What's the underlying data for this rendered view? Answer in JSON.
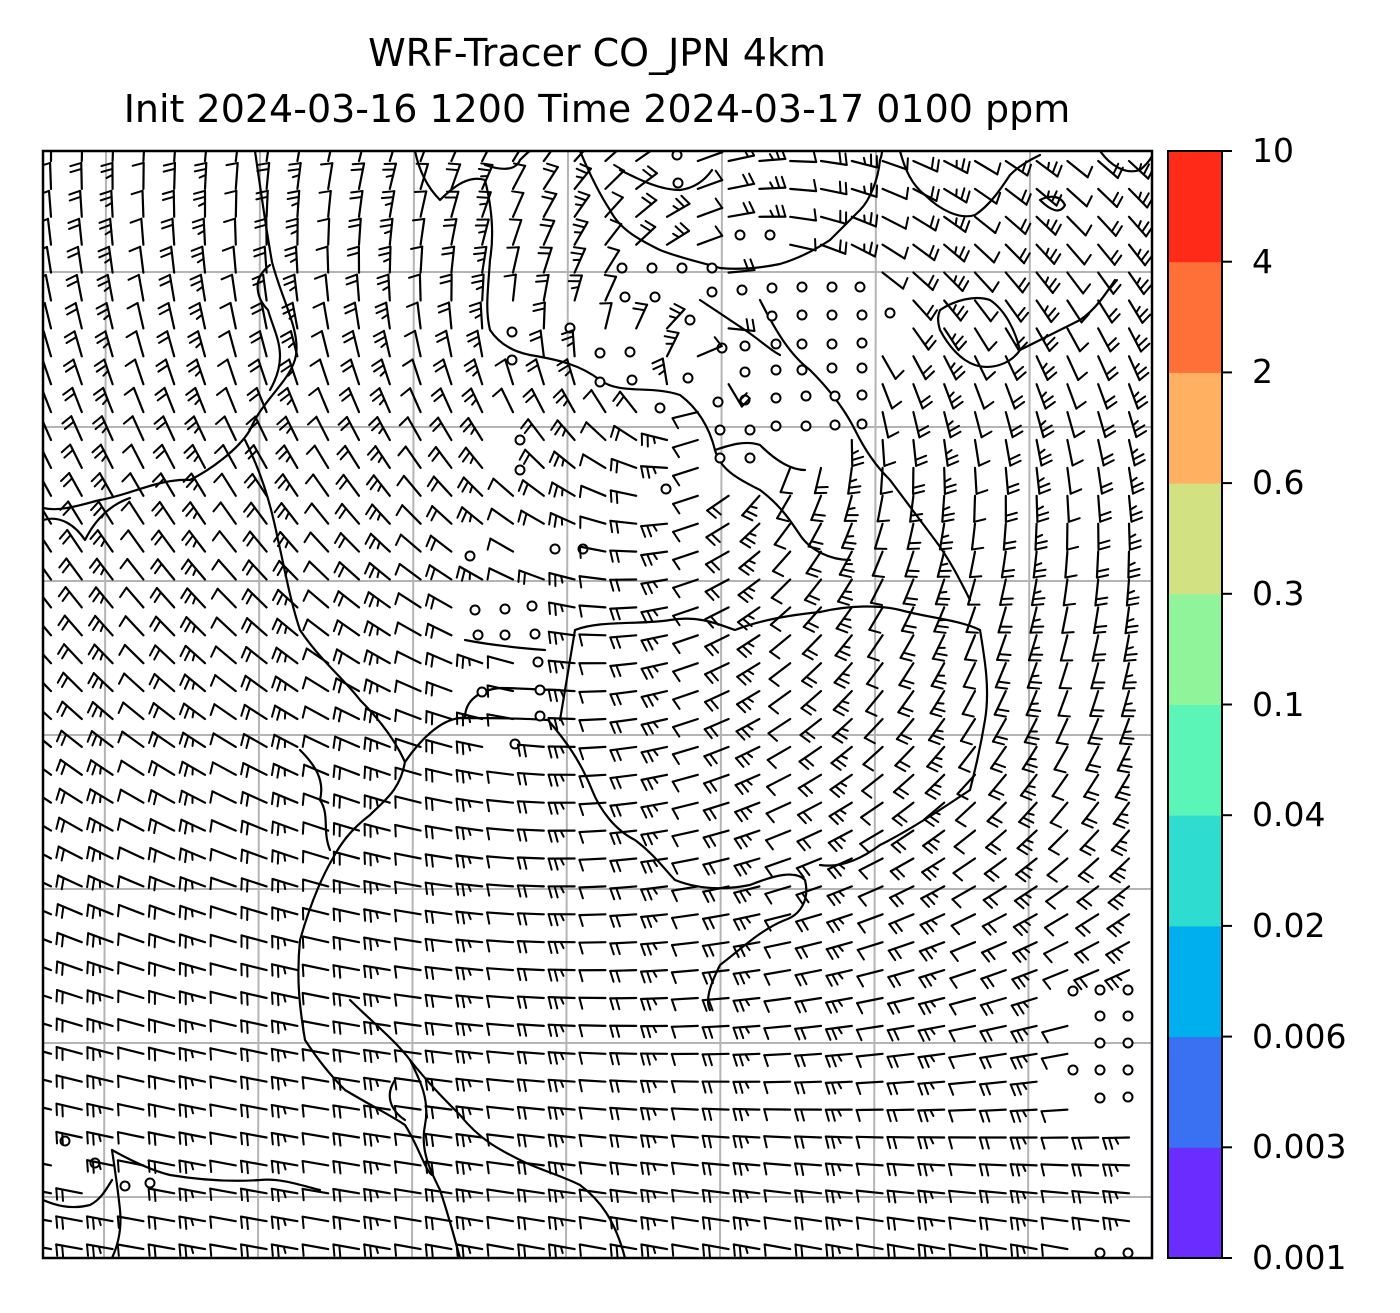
{
  "title": {
    "line1": "WRF-Tracer CO_JPN 4km",
    "line2": "Init 2024-03-16 1200 Time 2024-03-17 0100 ppm"
  },
  "colorbar": {
    "tick_labels": [
      "0.001",
      "0.003",
      "0.006",
      "0.02",
      "0.04",
      "0.1",
      "0.3",
      "0.6",
      "2",
      "4",
      "10"
    ],
    "colors": [
      "#6a2cff",
      "#3a70f2",
      "#00b0ee",
      "#2edcd0",
      "#5cf5b8",
      "#90f59a",
      "#d2e282",
      "#ffb060",
      "#ff7038",
      "#ff2a18"
    ]
  },
  "map": {
    "grid": true,
    "coastline_color": "#000000",
    "barb_color": "#000000",
    "grid_color": "#b4b4b4"
  }
}
